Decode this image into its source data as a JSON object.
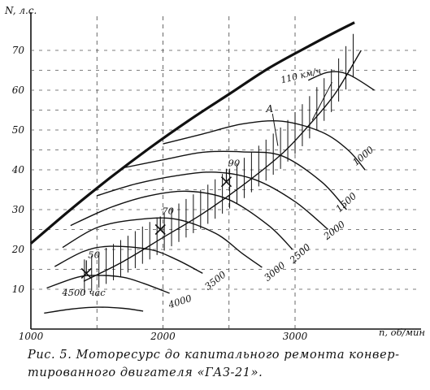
{
  "chart_data": {
    "type": "line",
    "xlabel": "n, об/мин",
    "ylabel": "N, л.с.",
    "xlim": [
      1000,
      3500
    ],
    "ylim": [
      0,
      80
    ],
    "x_ticks": [
      1000,
      2000,
      3000
    ],
    "y_ticks": [
      10,
      20,
      30,
      40,
      50,
      60,
      70
    ],
    "grid": true,
    "max_power_curve": {
      "x": [
        1000,
        1300,
        1600,
        1900,
        2200,
        2500,
        2800,
        3100,
        3300,
        3450
      ],
      "y": [
        21.5,
        30,
        38,
        45.5,
        52.5,
        59,
        65.5,
        71,
        74.5,
        77
      ]
    },
    "resistance_curve": {
      "label": "110 км/ч",
      "x": [
        1400,
        1700,
        2000,
        2300,
        2600,
        2900,
        3100,
        3300,
        3500
      ],
      "y": [
        12,
        17,
        23,
        29,
        36,
        44,
        51,
        59,
        70
      ]
    },
    "resource_curves": [
      {
        "label": "4500 час",
        "x": [
          1100,
          1300,
          1500,
          1700,
          1850
        ],
        "y": [
          4,
          5,
          5.5,
          5.2,
          4.5
        ]
      },
      {
        "label": "4000",
        "x": [
          1120,
          1350,
          1500,
          1700,
          1850,
          2050
        ],
        "y": [
          10.3,
          13,
          13.5,
          13,
          11.5,
          9
        ]
      },
      {
        "label": "3500",
        "x": [
          1180,
          1400,
          1600,
          1900,
          2100,
          2300
        ],
        "y": [
          15.7,
          19.5,
          20.8,
          20,
          17.5,
          14
        ]
      },
      {
        "label": "3000",
        "x": [
          1240,
          1500,
          1800,
          2100,
          2400,
          2600,
          2750
        ],
        "y": [
          20.5,
          25.5,
          27.5,
          27.6,
          24,
          19,
          15.5
        ]
      },
      {
        "label": "2500",
        "x": [
          1300,
          1600,
          1900,
          2200,
          2500,
          2800,
          2980
        ],
        "y": [
          26,
          30.5,
          33.5,
          34.6,
          32.5,
          26,
          20
        ]
      },
      {
        "label": "2000",
        "x": [
          1500,
          1800,
          2100,
          2400,
          2700,
          3000,
          3250
        ],
        "y": [
          33.5,
          36.5,
          38.5,
          39.4,
          37.5,
          32,
          25
        ]
      },
      {
        "label": "1500",
        "x": [
          1700,
          2000,
          2300,
          2600,
          2900,
          3200,
          3390
        ],
        "y": [
          40.5,
          42.5,
          44.4,
          44.5,
          43.5,
          37,
          30
        ]
      },
      {
        "label": "1000",
        "x": [
          2000,
          2300,
          2600,
          2900,
          3200,
          3400,
          3530
        ],
        "y": [
          46.5,
          49,
          51.5,
          52.2,
          49.5,
          45,
          40
        ]
      },
      {
        "label": "",
        "x": [
          3100,
          3250,
          3400,
          3600
        ],
        "y": [
          62.5,
          64.5,
          64,
          60
        ]
      }
    ],
    "power_steps": [
      {
        "label": "50",
        "x": 1420,
        "y": 14
      },
      {
        "label": "70",
        "x": 1980,
        "y": 25
      },
      {
        "label": "90",
        "x": 2480,
        "y": 37
      }
    ],
    "point_label": "А"
  },
  "caption": {
    "line1": "Рис. 5. Моторесурс до капитального ремонта конвер-",
    "line2": "тированного двигателя «ГАЗ-21»."
  }
}
